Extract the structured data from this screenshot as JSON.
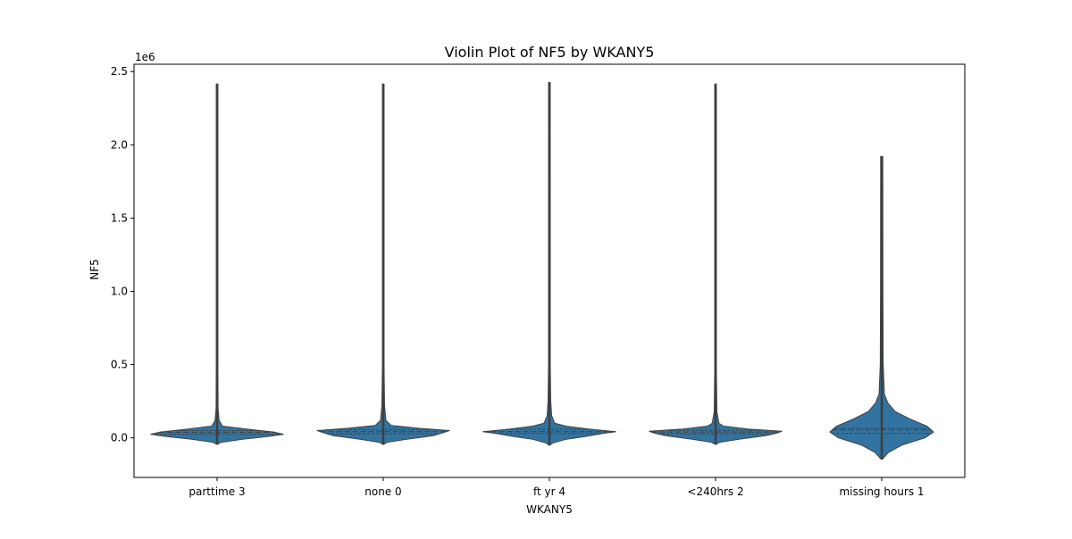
{
  "chart_data": {
    "type": "violin",
    "title": "Violin Plot of NF5 by WKANY5",
    "xlabel": "WKANY5",
    "ylabel": "NF5",
    "y_offset_label": "1e6",
    "ylim": [
      -0.27,
      2.55
    ],
    "y_ticks": [
      0.0,
      0.5,
      1.0,
      1.5,
      2.0,
      2.5
    ],
    "y_tick_labels": [
      "0.0",
      "0.5",
      "1.0",
      "1.5",
      "2.0",
      "2.5"
    ],
    "categories": [
      "parttime 3",
      "none 0",
      "ft yr 4",
      "<240hrs 2",
      "missing hours 1"
    ],
    "violins": [
      {
        "category": "parttime 3",
        "min": -0.045,
        "max": 2.415,
        "q1": 0.025,
        "median": 0.038,
        "q3": 0.05,
        "profile": [
          [
            -0.045,
            0.005
          ],
          [
            -0.03,
            0.06
          ],
          [
            -0.01,
            0.38
          ],
          [
            0.01,
            0.78
          ],
          [
            0.025,
            1.0
          ],
          [
            0.04,
            0.85
          ],
          [
            0.06,
            0.45
          ],
          [
            0.08,
            0.08
          ],
          [
            0.12,
            0.03
          ],
          [
            0.2,
            0.015
          ],
          [
            0.5,
            0.012
          ],
          [
            1.0,
            0.012
          ],
          [
            2.415,
            0.012
          ]
        ]
      },
      {
        "category": "none 0",
        "min": -0.045,
        "max": 2.415,
        "q1": 0.028,
        "median": 0.042,
        "q3": 0.055,
        "profile": [
          [
            -0.045,
            0.005
          ],
          [
            -0.03,
            0.06
          ],
          [
            -0.01,
            0.35
          ],
          [
            0.015,
            0.75
          ],
          [
            0.035,
            0.9
          ],
          [
            0.05,
            1.0
          ],
          [
            0.065,
            0.55
          ],
          [
            0.085,
            0.12
          ],
          [
            0.12,
            0.04
          ],
          [
            0.22,
            0.02
          ],
          [
            0.5,
            0.012
          ],
          [
            1.0,
            0.012
          ],
          [
            2.415,
            0.012
          ]
        ]
      },
      {
        "category": "ft yr 4",
        "min": -0.05,
        "max": 2.425,
        "q1": 0.03,
        "median": 0.042,
        "q3": 0.058,
        "profile": [
          [
            -0.05,
            0.005
          ],
          [
            -0.035,
            0.05
          ],
          [
            -0.01,
            0.25
          ],
          [
            0.01,
            0.55
          ],
          [
            0.03,
            0.8
          ],
          [
            0.042,
            1.0
          ],
          [
            0.06,
            0.6
          ],
          [
            0.08,
            0.25
          ],
          [
            0.1,
            0.08
          ],
          [
            0.15,
            0.035
          ],
          [
            0.25,
            0.02
          ],
          [
            0.5,
            0.013
          ],
          [
            1.0,
            0.013
          ],
          [
            2.425,
            0.012
          ]
        ]
      },
      {
        "category": "<240hrs 2",
        "min": -0.045,
        "max": 2.415,
        "q1": 0.027,
        "median": 0.04,
        "q3": 0.052,
        "profile": [
          [
            -0.045,
            0.005
          ],
          [
            -0.03,
            0.06
          ],
          [
            -0.01,
            0.35
          ],
          [
            0.015,
            0.75
          ],
          [
            0.03,
            0.9
          ],
          [
            0.045,
            1.0
          ],
          [
            0.06,
            0.5
          ],
          [
            0.08,
            0.12
          ],
          [
            0.1,
            0.05
          ],
          [
            0.18,
            0.02
          ],
          [
            0.5,
            0.012
          ],
          [
            1.0,
            0.012
          ],
          [
            2.415,
            0.012
          ]
        ]
      },
      {
        "category": "missing hours 1",
        "min": -0.145,
        "max": 1.92,
        "q1": 0.03,
        "median": 0.055,
        "q3": 0.065,
        "profile": [
          [
            -0.145,
            0.01
          ],
          [
            -0.1,
            0.1
          ],
          [
            -0.05,
            0.3
          ],
          [
            0.0,
            0.65
          ],
          [
            0.04,
            0.78
          ],
          [
            0.08,
            0.68
          ],
          [
            0.13,
            0.42
          ],
          [
            0.18,
            0.2
          ],
          [
            0.24,
            0.09
          ],
          [
            0.3,
            0.04
          ],
          [
            0.5,
            0.022
          ],
          [
            1.0,
            0.018
          ],
          [
            1.92,
            0.016
          ]
        ]
      }
    ],
    "fill_color": "#3274a1",
    "line_color": "#3f3f3f",
    "grid": false,
    "legend": "none"
  }
}
